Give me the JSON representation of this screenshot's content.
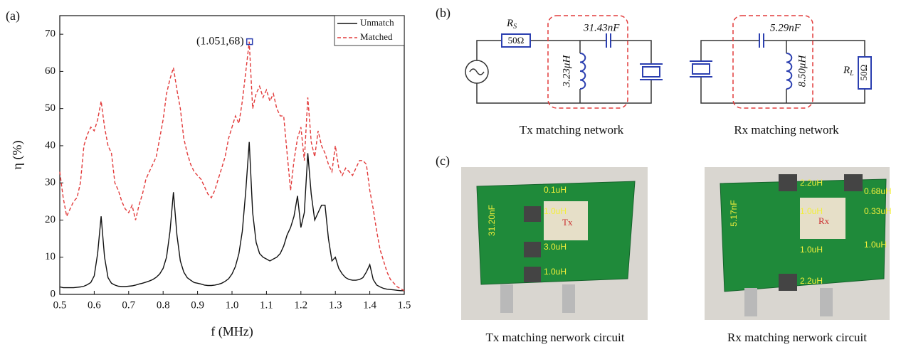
{
  "chart_data": {
    "type": "line",
    "x_label": "f (MHz)",
    "y_label": "η (%)",
    "x": [
      0.5,
      0.51,
      0.52,
      0.53,
      0.54,
      0.55,
      0.56,
      0.57,
      0.58,
      0.59,
      0.6,
      0.61,
      0.62,
      0.63,
      0.64,
      0.65,
      0.66,
      0.67,
      0.68,
      0.69,
      0.7,
      0.71,
      0.72,
      0.73,
      0.74,
      0.75,
      0.76,
      0.77,
      0.78,
      0.79,
      0.8,
      0.81,
      0.82,
      0.83,
      0.84,
      0.85,
      0.86,
      0.87,
      0.88,
      0.89,
      0.9,
      0.91,
      0.92,
      0.93,
      0.94,
      0.95,
      0.96,
      0.97,
      0.98,
      0.99,
      1.0,
      1.01,
      1.02,
      1.03,
      1.04,
      1.05,
      1.06,
      1.07,
      1.08,
      1.09,
      1.1,
      1.11,
      1.12,
      1.13,
      1.14,
      1.15,
      1.16,
      1.17,
      1.18,
      1.19,
      1.2,
      1.21,
      1.22,
      1.23,
      1.24,
      1.25,
      1.26,
      1.27,
      1.28,
      1.29,
      1.3,
      1.31,
      1.32,
      1.33,
      1.34,
      1.35,
      1.36,
      1.37,
      1.38,
      1.39,
      1.4,
      1.41,
      1.42,
      1.43,
      1.44,
      1.45,
      1.46,
      1.47,
      1.48,
      1.49,
      1.5
    ],
    "series": [
      {
        "name": "Unmatch",
        "color": "#111111",
        "dash": false,
        "values": [
          2,
          1.8,
          1.8,
          1.8,
          1.8,
          1.9,
          2,
          2.2,
          2.6,
          3.2,
          5,
          11,
          21,
          10,
          4.5,
          3,
          2.5,
          2.2,
          2.1,
          2.1,
          2.2,
          2.3,
          2.5,
          2.8,
          3,
          3.3,
          3.6,
          4,
          4.6,
          5.5,
          7,
          10,
          17,
          27.5,
          16,
          9,
          6,
          4.5,
          3.8,
          3.2,
          3,
          2.8,
          2.5,
          2.4,
          2.4,
          2.5,
          2.7,
          3,
          3.5,
          4.2,
          5.5,
          7.5,
          11,
          17,
          28,
          41,
          22,
          14,
          11,
          10,
          9.5,
          9,
          9.5,
          10,
          11,
          13,
          16,
          18,
          21,
          26.5,
          18,
          22,
          38,
          27,
          20,
          22,
          24,
          24,
          15,
          9,
          10,
          7,
          5.5,
          4.5,
          4,
          3.8,
          3.8,
          4,
          4.5,
          6,
          8,
          4,
          2.5,
          2,
          1.6,
          1.4,
          1.3,
          1.2,
          1.1,
          1,
          1
        ]
      },
      {
        "name": "Matched",
        "color": "#e23b3b",
        "dash": true,
        "values": [
          33,
          26,
          21,
          23,
          25,
          26,
          30,
          40,
          43,
          45,
          44,
          47,
          52,
          45,
          40,
          38,
          30,
          28,
          25,
          23,
          22,
          24,
          20,
          24,
          27,
          31,
          33,
          35,
          37,
          42,
          47,
          54,
          58,
          61,
          55,
          50,
          42,
          38,
          35,
          33,
          32,
          31,
          29,
          27,
          26,
          28,
          31,
          34,
          37,
          42,
          45,
          48,
          46,
          52,
          60,
          68,
          50,
          54,
          56,
          53,
          55,
          52,
          54,
          50,
          48,
          48,
          38,
          28,
          36,
          42,
          45,
          36,
          53,
          41,
          37,
          44,
          40,
          38,
          35,
          33,
          40,
          34,
          32,
          34,
          33,
          32,
          34,
          36,
          36,
          35,
          28,
          23,
          17,
          12,
          9,
          6,
          4,
          3,
          2,
          1.5,
          1
        ]
      }
    ],
    "xlim": [
      0.5,
      1.5
    ],
    "ylim": [
      0,
      75
    ],
    "xticks": [
      0.5,
      0.6,
      0.7,
      0.8,
      0.9,
      {
        "value": 1,
        "label": "1.0"
      },
      1.1,
      1.2,
      1.3,
      1.4,
      1.5
    ],
    "yticks": [
      0,
      10,
      20,
      30,
      40,
      50,
      60,
      70
    ],
    "legend": "top-right",
    "annotation": {
      "label": "(1.051,68)",
      "x": 1.051,
      "y": 68,
      "color": "#2b3fb0"
    }
  },
  "panels": {
    "a": "(a)",
    "b": "(b)",
    "c": "(c)"
  },
  "circuits": {
    "tx": {
      "rs": "R",
      "rs_sub": "S",
      "rs_value": "50Ω",
      "capacitor": "31.43nF",
      "inductor": "3.23μH",
      "caption": "Tx matching network"
    },
    "rx": {
      "capacitor": "5.29nF",
      "inductor": "8.50μH",
      "rl": "R",
      "rl_sub": "L",
      "rl_value": "50Ω",
      "caption": "Rx matching network"
    }
  },
  "photos": {
    "tx": {
      "labels": [
        "0.1uH",
        "1.0uH",
        "3.0uH",
        "1.0uH",
        "31.20nF"
      ],
      "board_text": "Tx",
      "caption": "Tx matching nerwork circuit"
    },
    "rx": {
      "labels": [
        "2.2uH",
        "0.68uH",
        "1.0uH",
        "0.33uH",
        "1.0uH",
        "1.0uH",
        "2.2uH",
        "5.17nF"
      ],
      "board_text": "Rx",
      "caption": "Rx matching nerwork circuit"
    }
  }
}
